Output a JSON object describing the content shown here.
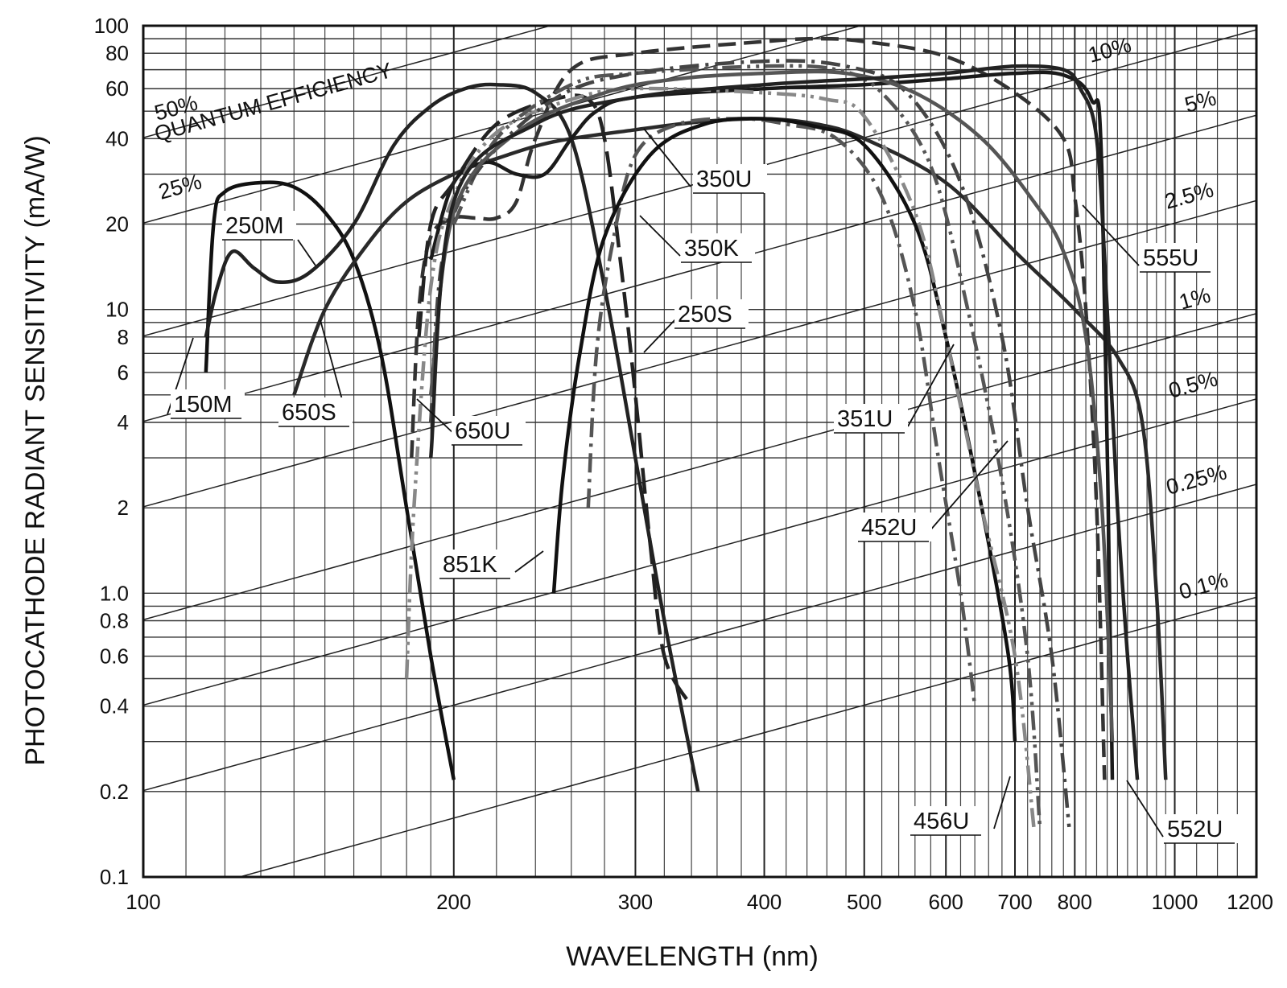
{
  "chart_data": {
    "type": "line",
    "title": "",
    "xlabel": "WAVELENGTH (nm)",
    "ylabel": "PHOTOCATHODE RADIANT SENSITIVITY (mA/W)",
    "x_scale": "log",
    "y_scale": "log",
    "xlim": [
      100,
      1200
    ],
    "ylim": [
      0.1,
      100
    ],
    "grid": true,
    "x_ticks": [
      100,
      200,
      300,
      400,
      500,
      600,
      700,
      800,
      1000,
      1200
    ],
    "x_tick_labels": [
      "100",
      "200",
      "300",
      "400",
      "500",
      "600",
      "700",
      "800",
      "1000",
      "1200"
    ],
    "y_ticks": [
      0.1,
      0.2,
      0.4,
      0.6,
      0.8,
      1.0,
      2,
      4,
      6,
      8,
      10,
      20,
      40,
      60,
      80,
      100
    ],
    "y_tick_labels": [
      "0.1",
      "0.2",
      "0.4",
      "0.6",
      "0.8",
      "1.0",
      "2",
      "4",
      "6",
      "8",
      "10",
      "20",
      "40",
      "60",
      "80",
      "100"
    ],
    "qe_lines": [
      {
        "qe": 0.5,
        "label": "50%",
        "label2": "QUANTUM EFFICIENCY"
      },
      {
        "qe": 0.25,
        "label": "25%"
      },
      {
        "qe": 0.1,
        "label": "10%"
      },
      {
        "qe": 0.05,
        "label": "5%"
      },
      {
        "qe": 0.025,
        "label": "2.5%"
      },
      {
        "qe": 0.01,
        "label": "1%"
      },
      {
        "qe": 0.005,
        "label": "0.5%"
      },
      {
        "qe": 0.0025,
        "label": "0.25%"
      },
      {
        "qe": 0.001,
        "label": "0.1%"
      }
    ],
    "series": [
      {
        "name": "150M",
        "color": "#111111",
        "dash": "solid",
        "points": [
          [
            115,
            6
          ],
          [
            117,
            20
          ],
          [
            120,
            26
          ],
          [
            130,
            28
          ],
          [
            140,
            27
          ],
          [
            150,
            22
          ],
          [
            160,
            15
          ],
          [
            170,
            7
          ],
          [
            180,
            2
          ],
          [
            190,
            0.6
          ],
          [
            200,
            0.22
          ]
        ]
      },
      {
        "name": "250M",
        "color": "#222222",
        "dash": "solid",
        "points": [
          [
            115,
            8
          ],
          [
            118,
            12
          ],
          [
            122,
            16
          ],
          [
            128,
            14
          ],
          [
            135,
            12.5
          ],
          [
            145,
            13.5
          ],
          [
            160,
            20
          ],
          [
            175,
            38
          ],
          [
            190,
            52
          ],
          [
            205,
            60
          ],
          [
            220,
            62
          ],
          [
            240,
            58
          ],
          [
            260,
            40
          ],
          [
            280,
            12
          ],
          [
            300,
            3
          ],
          [
            320,
            0.8
          ],
          [
            345,
            0.2
          ]
        ]
      },
      {
        "name": "650S",
        "color": "#2a2a2a",
        "dash": "solid",
        "points": [
          [
            140,
            5
          ],
          [
            150,
            10
          ],
          [
            165,
            17
          ],
          [
            180,
            24
          ],
          [
            200,
            30
          ],
          [
            220,
            34
          ],
          [
            250,
            39
          ],
          [
            300,
            43
          ],
          [
            350,
            46
          ],
          [
            400,
            47
          ],
          [
            450,
            45
          ],
          [
            500,
            40
          ],
          [
            600,
            28
          ],
          [
            700,
            16
          ],
          [
            800,
            10
          ],
          [
            880,
            6.8
          ],
          [
            930,
            4
          ],
          [
            960,
            1
          ],
          [
            980,
            0.22
          ]
        ]
      },
      {
        "name": "650U",
        "color": "#333333",
        "dash": "dash",
        "points": [
          [
            182,
            3
          ],
          [
            185,
            10
          ],
          [
            190,
            18
          ],
          [
            200,
            21
          ],
          [
            210,
            21
          ],
          [
            220,
            21
          ],
          [
            230,
            24
          ],
          [
            240,
            40
          ],
          [
            260,
            70
          ],
          [
            300,
            80
          ],
          [
            400,
            88
          ],
          [
            450,
            90
          ],
          [
            500,
            88
          ],
          [
            600,
            78
          ],
          [
            700,
            58
          ],
          [
            780,
            40
          ],
          [
            800,
            25
          ],
          [
            820,
            10
          ],
          [
            840,
            2
          ],
          [
            855,
            0.22
          ]
        ]
      },
      {
        "name": "350U",
        "color": "#1a1a1a",
        "dash": "solid",
        "points": [
          [
            190,
            15
          ],
          [
            200,
            28
          ],
          [
            215,
            33
          ],
          [
            230,
            30
          ],
          [
            245,
            30
          ],
          [
            260,
            40
          ],
          [
            275,
            50
          ],
          [
            300,
            56
          ],
          [
            400,
            60
          ],
          [
            500,
            62
          ],
          [
            600,
            65
          ],
          [
            700,
            68
          ],
          [
            780,
            67
          ],
          [
            830,
            55
          ],
          [
            850,
            30
          ],
          [
            870,
            0.22
          ]
        ]
      },
      {
        "name": "350K",
        "color": "#222222",
        "dash": "longdash",
        "points": [
          [
            185,
            8
          ],
          [
            190,
            20
          ],
          [
            200,
            28
          ],
          [
            220,
            45
          ],
          [
            250,
            55
          ],
          [
            270,
            55
          ],
          [
            280,
            40
          ],
          [
            290,
            15
          ],
          [
            300,
            5
          ],
          [
            310,
            1.5
          ],
          [
            320,
            0.6
          ],
          [
            340,
            0.4
          ]
        ]
      },
      {
        "name": "250S",
        "color": "#555555",
        "dash": "dashdot",
        "points": [
          [
            270,
            2
          ],
          [
            275,
            7
          ],
          [
            285,
            17
          ],
          [
            300,
            35
          ],
          [
            330,
            45
          ],
          [
            380,
            47
          ],
          [
            420,
            45
          ],
          [
            470,
            40
          ],
          [
            520,
            25
          ],
          [
            560,
            10
          ],
          [
            590,
            3
          ],
          [
            620,
            1
          ],
          [
            640,
            0.4
          ]
        ]
      },
      {
        "name": "851K",
        "color": "#111111",
        "dash": "solid",
        "points": [
          [
            250,
            1
          ],
          [
            255,
            2.5
          ],
          [
            265,
            7
          ],
          [
            280,
            18
          ],
          [
            310,
            35
          ],
          [
            350,
            45
          ],
          [
            400,
            47
          ],
          [
            450,
            44
          ],
          [
            500,
            38
          ],
          [
            560,
            20
          ],
          [
            600,
            8
          ],
          [
            650,
            2
          ],
          [
            690,
            0.6
          ],
          [
            700,
            0.3
          ]
        ]
      },
      {
        "name": "351U",
        "color": "#888888",
        "dash": "dashdotdot",
        "points": [
          [
            180,
            0.5
          ],
          [
            183,
            2
          ],
          [
            190,
            12
          ],
          [
            200,
            25
          ],
          [
            220,
            42
          ],
          [
            260,
            55
          ],
          [
            300,
            60
          ],
          [
            400,
            58
          ],
          [
            460,
            55
          ],
          [
            500,
            48
          ],
          [
            560,
            22
          ],
          [
            600,
            8
          ],
          [
            650,
            2
          ],
          [
            700,
            0.6
          ],
          [
            730,
            0.15
          ]
        ]
      },
      {
        "name": "452U",
        "color": "#555555",
        "dash": "dashdotdot",
        "points": [
          [
            200,
            20
          ],
          [
            220,
            40
          ],
          [
            260,
            62
          ],
          [
            300,
            68
          ],
          [
            400,
            72
          ],
          [
            470,
            70
          ],
          [
            520,
            58
          ],
          [
            580,
            32
          ],
          [
            630,
            10
          ],
          [
            680,
            2.5
          ],
          [
            720,
            0.6
          ],
          [
            740,
            0.15
          ]
        ]
      },
      {
        "name": "456U",
        "color": "#444444",
        "dash": "dashdot",
        "points": [
          [
            190,
            4
          ],
          [
            195,
            15
          ],
          [
            210,
            30
          ],
          [
            250,
            55
          ],
          [
            300,
            68
          ],
          [
            400,
            75
          ],
          [
            480,
            72
          ],
          [
            550,
            58
          ],
          [
            620,
            28
          ],
          [
            680,
            8
          ],
          [
            720,
            2
          ],
          [
            760,
            0.6
          ],
          [
            790,
            0.15
          ]
        ]
      },
      {
        "name": "552U",
        "color": "#555555",
        "dash": "solid",
        "points": [
          [
            190,
            5
          ],
          [
            200,
            22
          ],
          [
            230,
            42
          ],
          [
            280,
            58
          ],
          [
            330,
            65
          ],
          [
            400,
            68
          ],
          [
            480,
            68
          ],
          [
            560,
            58
          ],
          [
            650,
            40
          ],
          [
            730,
            24
          ],
          [
            780,
            16
          ],
          [
            820,
            8
          ],
          [
            850,
            2
          ],
          [
            870,
            0.3
          ]
        ]
      },
      {
        "name": "555U",
        "color": "#222222",
        "dash": "solid",
        "points": [
          [
            190,
            3
          ],
          [
            200,
            24
          ],
          [
            240,
            45
          ],
          [
            300,
            56
          ],
          [
            400,
            62
          ],
          [
            500,
            65
          ],
          [
            600,
            68
          ],
          [
            700,
            72
          ],
          [
            780,
            70
          ],
          [
            810,
            60
          ],
          [
            840,
            40
          ],
          [
            860,
            10
          ],
          [
            880,
            2
          ],
          [
            900,
            0.6
          ],
          [
            920,
            0.22
          ]
        ]
      }
    ],
    "annotations": [
      {
        "text": "150M"
      },
      {
        "text": "250M"
      },
      {
        "text": "650S"
      },
      {
        "text": "650U"
      },
      {
        "text": "350U"
      },
      {
        "text": "350K"
      },
      {
        "text": "250S"
      },
      {
        "text": "851K"
      },
      {
        "text": "351U"
      },
      {
        "text": "452U"
      },
      {
        "text": "456U"
      },
      {
        "text": "552U"
      },
      {
        "text": "555U"
      }
    ]
  }
}
